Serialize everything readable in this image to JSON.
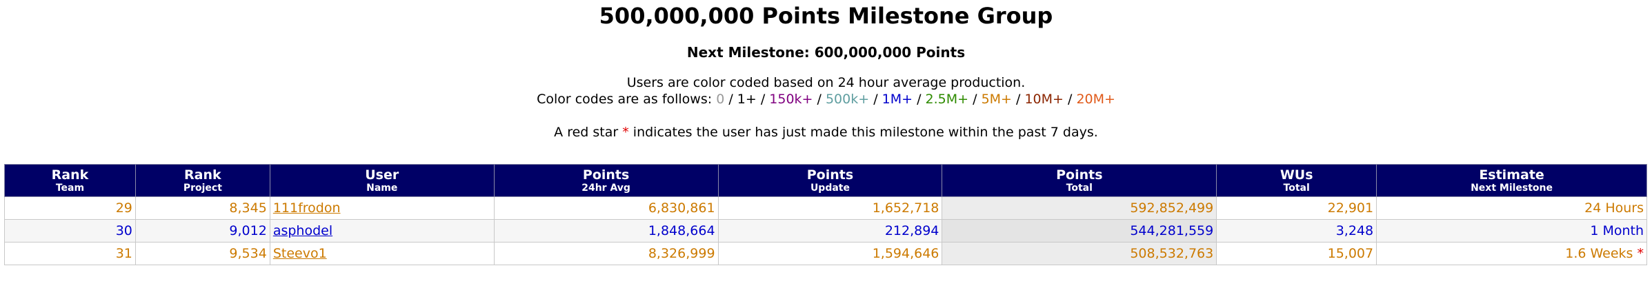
{
  "header": {
    "title": "500,000,000 Points Milestone Group",
    "next_milestone": "Next Milestone: 600,000,000 Points",
    "color_note": "Users are color coded based on 24 hour average production.",
    "color_codes_intro": "Color codes are as follows:",
    "star_note_before": "A red star",
    "star_symbol": "*",
    "star_note_after": "indicates the user has just made this milestone within the past 7 days."
  },
  "legend": [
    {
      "label": "0",
      "color": "#9a9a9a"
    },
    {
      "label": "1+",
      "color": "#000000"
    },
    {
      "label": "150k+",
      "color": "#800080"
    },
    {
      "label": "500k+",
      "color": "#5f9ea0"
    },
    {
      "label": "1M+",
      "color": "#0000cc"
    },
    {
      "label": "2.5M+",
      "color": "#2e8b00"
    },
    {
      "label": "5M+",
      "color": "#cc7a00"
    },
    {
      "label": "10M+",
      "color": "#8b2500"
    },
    {
      "label": "20M+",
      "color": "#e05a1a"
    }
  ],
  "table": {
    "columns": [
      {
        "title": "Rank",
        "sub": "Team"
      },
      {
        "title": "Rank",
        "sub": "Project"
      },
      {
        "title": "User",
        "sub": "Name"
      },
      {
        "title": "Points",
        "sub": "24hr Avg"
      },
      {
        "title": "Points",
        "sub": "Update"
      },
      {
        "title": "Points",
        "sub": "Total"
      },
      {
        "title": "WUs",
        "sub": "Total"
      },
      {
        "title": "Estimate",
        "sub": "Next Milestone"
      }
    ],
    "rows": [
      {
        "rank_team": "29",
        "rank_project": "8,345",
        "user": "111frodon",
        "avg": "6,830,861",
        "update": "1,652,718",
        "total": "592,852,499",
        "wus": "22,901",
        "estimate": "24 Hours",
        "star": "",
        "color": "#cc7a00"
      },
      {
        "rank_team": "30",
        "rank_project": "9,012",
        "user": "asphodel",
        "avg": "1,848,664",
        "update": "212,894",
        "total": "544,281,559",
        "wus": "3,248",
        "estimate": "1 Month",
        "star": "",
        "color": "#0000cc"
      },
      {
        "rank_team": "31",
        "rank_project": "9,534",
        "user": "Steevo1",
        "avg": "8,326,999",
        "update": "1,594,646",
        "total": "508,532,763",
        "wus": "15,007",
        "estimate": "1.6 Weeks",
        "star": "*",
        "color": "#cc7a00"
      }
    ]
  }
}
